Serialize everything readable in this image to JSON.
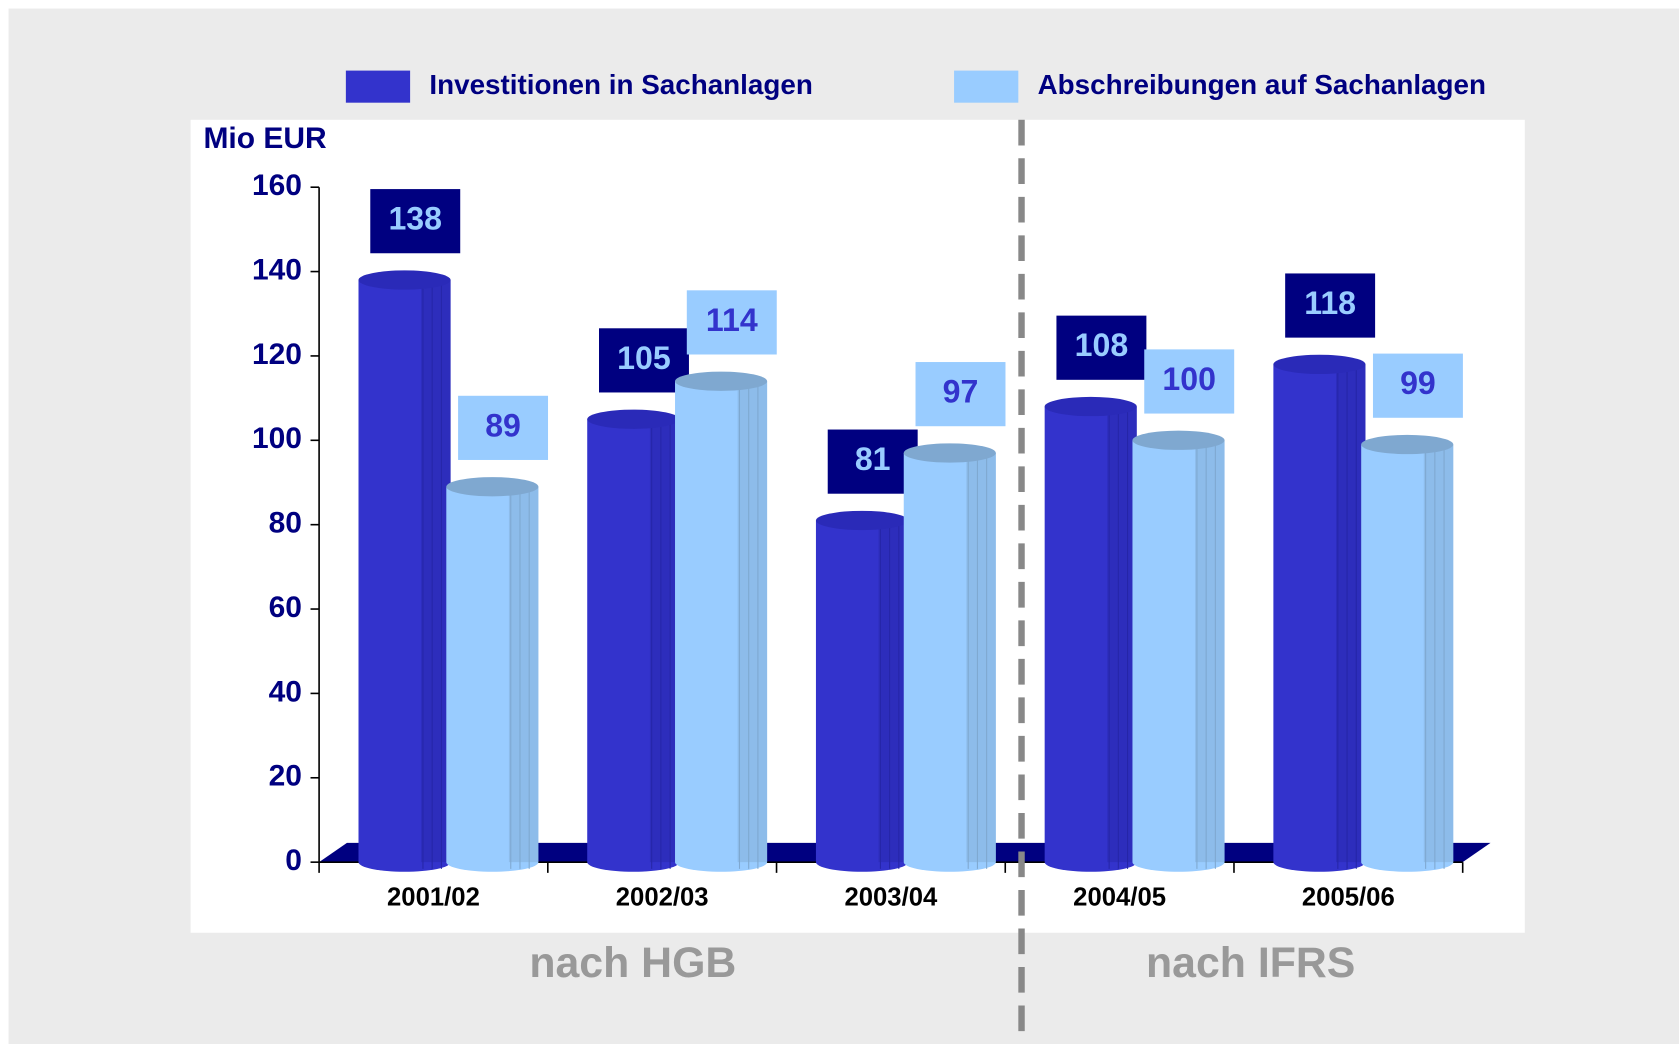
{
  "chart_data": {
    "type": "bar",
    "y_label": "Mio EUR",
    "categories": [
      "2001/02",
      "2002/03",
      "2003/04",
      "2004/05",
      "2005/06"
    ],
    "series": [
      {
        "name": "Investitionen in Sachanlagen",
        "color": "#3333cc",
        "values": [
          138,
          105,
          81,
          108,
          118
        ]
      },
      {
        "name": "Abschreibungen auf Sachanlagen",
        "color": "#99ccff",
        "values": [
          89,
          114,
          97,
          100,
          99
        ]
      }
    ],
    "ylim": [
      0,
      160
    ],
    "yticks": [
      0,
      20,
      40,
      60,
      80,
      100,
      120,
      140,
      160
    ],
    "annotations": [
      "nach HGB",
      "nach IFRS"
    ],
    "legend": "top"
  }
}
